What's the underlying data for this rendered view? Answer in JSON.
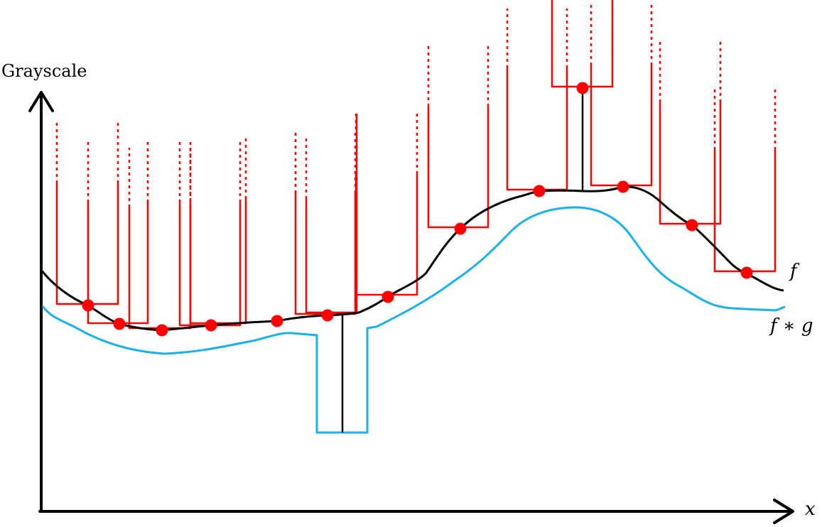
{
  "labels": {
    "y_axis": "Grayscale",
    "x_axis": "x",
    "curve_f": "f",
    "curve_fg": "f ∗ g"
  },
  "colors": {
    "axis": "#000000",
    "curve_f": "#000000",
    "curve_fg": "#1ab0ea",
    "structuring_element": "#ff0000",
    "points": "#ff0000"
  }
}
